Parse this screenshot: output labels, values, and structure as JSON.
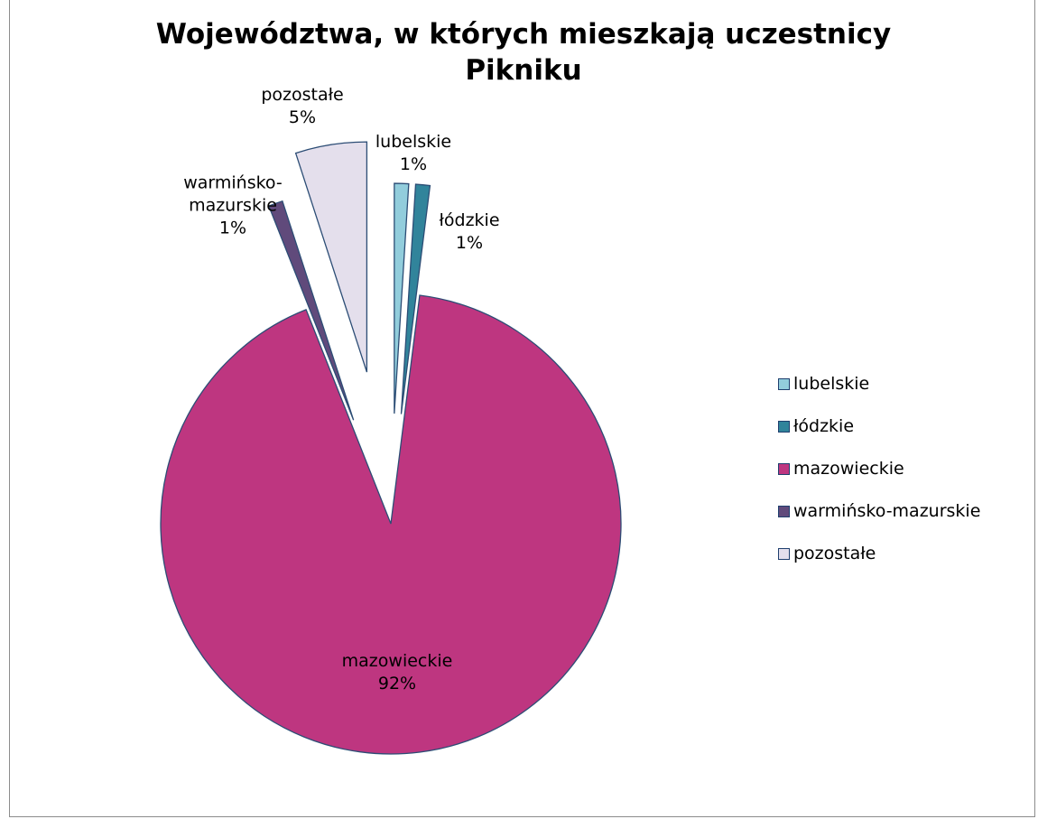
{
  "chart_data": {
    "type": "pie",
    "title": "Województwa, w których mieszkają uczestnicy Pikniku",
    "categories": [
      "lubelskie",
      "łódzkie",
      "mazowieckie",
      "warmińsko-mazurskie",
      "pozostałe"
    ],
    "values": [
      1,
      1,
      92,
      1,
      5
    ],
    "value_labels": [
      "1%",
      "1%",
      "92%",
      "1%",
      "5%"
    ],
    "colors": [
      "#92cddc",
      "#31849b",
      "#be3680",
      "#604a7b",
      "#e4dfec"
    ],
    "legend": "right"
  }
}
